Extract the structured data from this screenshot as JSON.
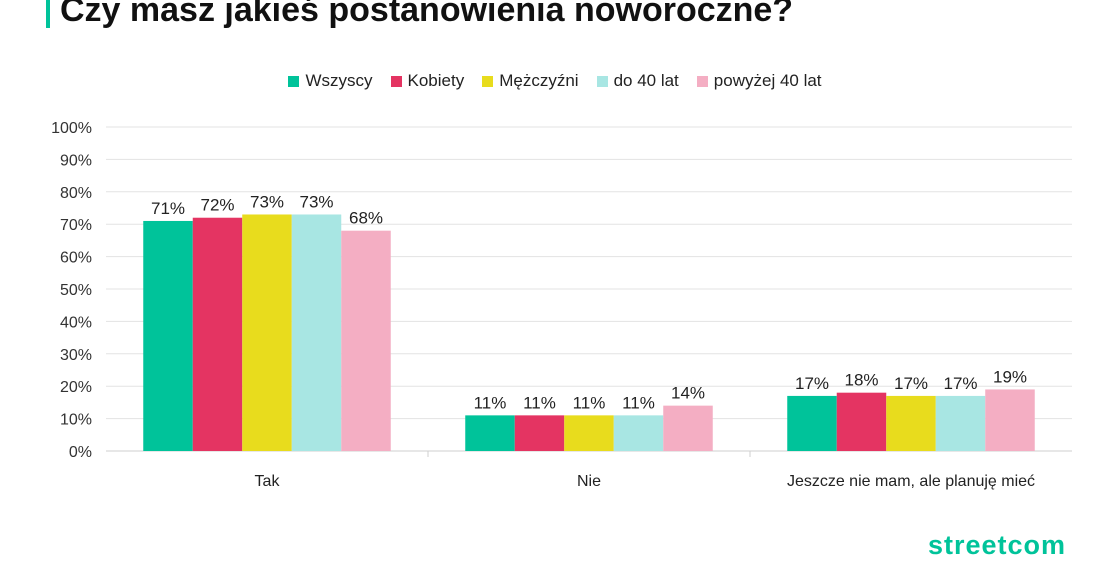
{
  "page": {
    "title": "Czy masz jakieś postanowienia noworoczne?",
    "logo": "streetcom",
    "accent_color": "#00c39a"
  },
  "chart_data": {
    "type": "bar",
    "title": "Czy masz jakieś postanowienia noworoczne?",
    "categories": [
      "Tak",
      "Nie",
      "Jeszcze nie mam, ale planuję mieć"
    ],
    "series": [
      {
        "name": "Wszyscy",
        "color": "#00c39a",
        "values": [
          71,
          11,
          17
        ],
        "labels": [
          "71%",
          "11%",
          "17%"
        ]
      },
      {
        "name": "Kobiety",
        "color": "#e43462",
        "values": [
          72,
          11,
          18
        ],
        "labels": [
          "72%",
          "11%",
          "18%"
        ]
      },
      {
        "name": "Mężczyźni",
        "color": "#e8dc1d",
        "values": [
          73,
          11,
          17
        ],
        "labels": [
          "73%",
          "11%",
          "17%"
        ]
      },
      {
        "name": "do 40 lat",
        "color": "#a8e6e3",
        "values": [
          73,
          11,
          17
        ],
        "labels": [
          "73%",
          "11%",
          "17%"
        ]
      },
      {
        "name": "powyżej 40 lat",
        "color": "#f4aec3",
        "values": [
          68,
          14,
          19
        ],
        "labels": [
          "68%",
          "14%",
          "19%"
        ]
      }
    ],
    "yticks": [
      "0%",
      "10%",
      "20%",
      "30%",
      "40%",
      "50%",
      "60%",
      "70%",
      "80%",
      "90%",
      "100%"
    ],
    "ylim": [
      0,
      100
    ],
    "grid": true,
    "legend": "top"
  }
}
